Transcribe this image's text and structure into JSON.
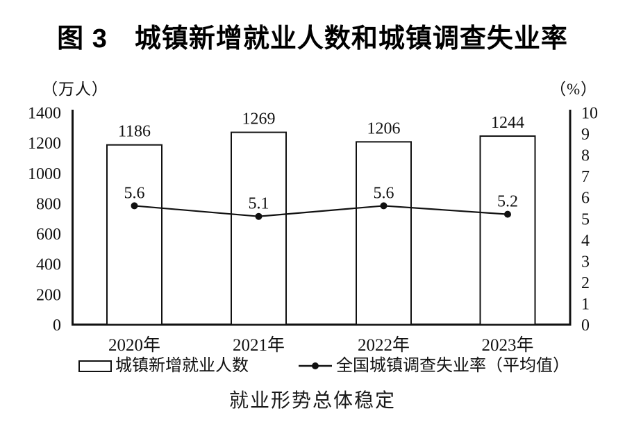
{
  "title": "图 3　城镇新增就业人数和城镇调查失业率",
  "caption": "就业形势总体稳定",
  "legend": {
    "bars_label": "城镇新增就业人数",
    "line_label": "全国城镇调查失业率（平均值）"
  },
  "colors": {
    "ink": "#111111",
    "bar_fill": "#ffffff"
  },
  "chart_data": {
    "type": "bar",
    "subtype": "bar+line dual axis",
    "title": "图 3　城镇新增就业人数和城镇调查失业率",
    "categories": [
      "2020年",
      "2021年",
      "2022年",
      "2023年"
    ],
    "series": [
      {
        "name": "城镇新增就业人数",
        "type": "bar",
        "axis": "left",
        "values": [
          1186,
          1269,
          1206,
          1244
        ]
      },
      {
        "name": "全国城镇调查失业率（平均值）",
        "type": "line",
        "axis": "right",
        "values": [
          5.6,
          5.1,
          5.6,
          5.2
        ]
      }
    ],
    "left_axis": {
      "label": "（万人）",
      "min": 0,
      "max": 1400,
      "tick_step": 200
    },
    "right_axis": {
      "label": "（%）",
      "min": 0,
      "max": 10,
      "tick_step": 1
    },
    "grid": false,
    "legend_position": "bottom",
    "footnote": "就业形势总体稳定"
  }
}
